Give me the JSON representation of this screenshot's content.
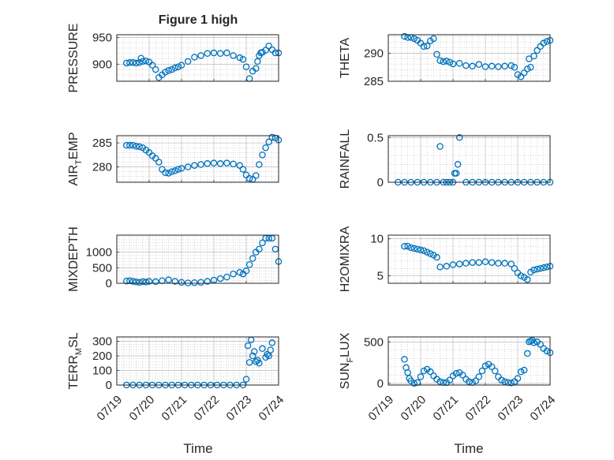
{
  "title": "Figure 1 high",
  "colors": {
    "marker": "#0072BD",
    "axis": "#262626",
    "grid": "#b0b0b0",
    "background": "#ffffff"
  },
  "x_tick_labels": [
    "07/19",
    "07/20",
    "07/21",
    "07/22",
    "07/23",
    "07/24"
  ],
  "x_axis_label": "Time",
  "chart_data": [
    {
      "type": "scatter",
      "title": "Figure 1 high",
      "ylabel": "PRESSURE",
      "xlabel": "",
      "xlim": [
        0,
        5
      ],
      "ylim": [
        868,
        955
      ],
      "yticks": [
        900,
        950
      ],
      "grid": "on",
      "x": [
        0.3,
        0.4,
        0.5,
        0.6,
        0.7,
        0.75,
        0.8,
        0.9,
        1.0,
        1.1,
        1.2,
        1.3,
        1.4,
        1.5,
        1.6,
        1.7,
        1.8,
        1.9,
        2.0,
        2.2,
        2.4,
        2.6,
        2.8,
        3.0,
        3.2,
        3.4,
        3.6,
        3.8,
        3.9,
        4.0,
        4.1,
        4.2,
        4.3,
        4.35,
        4.4,
        4.45,
        4.5,
        4.6,
        4.7,
        4.8,
        4.9,
        5.0
      ],
      "y": [
        902,
        903,
        903,
        902,
        903,
        911,
        905,
        906,
        904,
        898,
        890,
        875,
        880,
        885,
        888,
        890,
        893,
        895,
        898,
        905,
        913,
        916,
        920,
        921,
        920,
        921,
        916,
        912,
        909,
        895,
        873,
        887,
        892,
        905,
        916,
        921,
        922,
        926,
        934,
        927,
        921,
        921
      ]
    },
    {
      "type": "scatter",
      "ylabel": "THETA",
      "xlim": [
        0,
        5
      ],
      "ylim": [
        285,
        293.3
      ],
      "yticks": [
        285,
        290
      ],
      "grid": "on",
      "x": [
        0.5,
        0.6,
        0.7,
        0.8,
        0.9,
        1.0,
        1.1,
        1.2,
        1.3,
        1.4,
        1.5,
        1.6,
        1.7,
        1.8,
        1.9,
        2.0,
        2.2,
        2.4,
        2.6,
        2.8,
        3.0,
        3.2,
        3.4,
        3.6,
        3.8,
        3.9,
        4.0,
        4.1,
        4.2,
        4.3,
        4.35,
        4.4,
        4.5,
        4.6,
        4.7,
        4.8,
        4.9,
        5.0
      ],
      "y": [
        293,
        292.8,
        292.8,
        292.6,
        292.3,
        291.8,
        291.2,
        291.3,
        292.2,
        292.6,
        289.8,
        288.7,
        288.5,
        288.6,
        288.4,
        288.1,
        288.2,
        287.8,
        287.7,
        288,
        287.6,
        287.7,
        287.6,
        287.7,
        287.8,
        287.5,
        286.2,
        285.8,
        286.5,
        287.2,
        289,
        287.5,
        289.5,
        290.5,
        291.2,
        291.8,
        292.1,
        292.3
      ]
    },
    {
      "type": "scatter",
      "ylabel": "AIR_TEMP",
      "xlim": [
        0,
        5
      ],
      "ylim": [
        276.8,
        286.5
      ],
      "yticks": [
        280,
        285
      ],
      "grid": "on",
      "x": [
        0.3,
        0.4,
        0.5,
        0.6,
        0.7,
        0.8,
        0.9,
        1.0,
        1.1,
        1.2,
        1.3,
        1.4,
        1.5,
        1.6,
        1.7,
        1.8,
        1.9,
        2.0,
        2.2,
        2.4,
        2.6,
        2.8,
        3.0,
        3.2,
        3.4,
        3.6,
        3.8,
        3.9,
        4.0,
        4.1,
        4.2,
        4.3,
        4.4,
        4.5,
        4.6,
        4.7,
        4.8,
        4.9,
        5.0
      ],
      "y": [
        284.5,
        284.5,
        284.5,
        284.3,
        284.2,
        284,
        283.5,
        283,
        282.3,
        281.8,
        281,
        279.5,
        278.8,
        278.7,
        279,
        279.2,
        279.5,
        279.7,
        280,
        280.3,
        280.5,
        280.7,
        280.8,
        280.7,
        280.8,
        280.6,
        280.3,
        279.5,
        278.3,
        277.6,
        277.4,
        278.2,
        280.5,
        282.5,
        284,
        285.2,
        286.2,
        286,
        285.6
      ]
    },
    {
      "type": "scatter",
      "ylabel": "RAINFALL",
      "xlim": [
        0,
        5
      ],
      "ylim": [
        0,
        0.52
      ],
      "yticks": [
        0,
        0.5
      ],
      "grid": "on",
      "x": [
        0.3,
        0.5,
        0.7,
        0.9,
        1.1,
        1.3,
        1.5,
        1.6,
        1.7,
        1.8,
        1.9,
        2.0,
        2.05,
        2.1,
        2.15,
        2.2,
        2.4,
        2.6,
        2.8,
        3.0,
        3.2,
        3.4,
        3.6,
        3.8,
        4.0,
        4.2,
        4.4,
        4.6,
        4.8,
        5.0
      ],
      "y": [
        0,
        0,
        0,
        0,
        0,
        0,
        0,
        0.4,
        0,
        0,
        0,
        0,
        0.1,
        0.1,
        0.2,
        0.5,
        0,
        0,
        0,
        0,
        0,
        0,
        0,
        0,
        0,
        0,
        0,
        0,
        0,
        0
      ]
    },
    {
      "type": "scatter",
      "ylabel": "MIXDEPTH",
      "xlim": [
        0,
        5
      ],
      "ylim": [
        0,
        1550
      ],
      "yticks": [
        0,
        500,
        1000
      ],
      "grid": "on",
      "x": [
        0.3,
        0.4,
        0.5,
        0.6,
        0.7,
        0.8,
        0.9,
        1.0,
        1.2,
        1.4,
        1.6,
        1.8,
        2.0,
        2.2,
        2.4,
        2.6,
        2.8,
        3.0,
        3.2,
        3.4,
        3.6,
        3.8,
        3.9,
        4.0,
        4.1,
        4.2,
        4.3,
        4.4,
        4.5,
        4.6,
        4.7,
        4.8,
        4.9,
        5.0
      ],
      "y": [
        70,
        80,
        60,
        40,
        30,
        50,
        40,
        60,
        50,
        80,
        110,
        60,
        30,
        10,
        20,
        30,
        60,
        100,
        150,
        200,
        300,
        350,
        300,
        400,
        600,
        800,
        1000,
        1100,
        1300,
        1450,
        1450,
        1450,
        1100,
        700
      ]
    },
    {
      "type": "scatter",
      "ylabel": "H2OMIXRA",
      "xlim": [
        0,
        5
      ],
      "ylim": [
        4,
        10.5
      ],
      "yticks": [
        5,
        10
      ],
      "grid": "on",
      "x": [
        0.5,
        0.6,
        0.7,
        0.8,
        0.9,
        1.0,
        1.1,
        1.2,
        1.3,
        1.4,
        1.5,
        1.6,
        1.8,
        2.0,
        2.2,
        2.4,
        2.6,
        2.8,
        3.0,
        3.2,
        3.4,
        3.6,
        3.8,
        3.9,
        4.0,
        4.1,
        4.2,
        4.3,
        4.4,
        4.5,
        4.6,
        4.7,
        4.8,
        4.9,
        5.0
      ],
      "y": [
        9,
        9,
        8.8,
        8.7,
        8.6,
        8.5,
        8.4,
        8.2,
        8,
        7.8,
        7.5,
        6.2,
        6.3,
        6.5,
        6.6,
        6.7,
        6.8,
        6.8,
        6.9,
        6.8,
        6.7,
        6.7,
        6.6,
        6,
        5.4,
        5,
        4.8,
        4.5,
        5.5,
        5.8,
        5.9,
        6,
        6.1,
        6.2,
        6.3
      ]
    },
    {
      "type": "scatter",
      "ylabel": "TERR_MSL",
      "xlim": [
        0,
        5
      ],
      "ylim": [
        0,
        330
      ],
      "yticks": [
        0,
        100,
        200,
        300
      ],
      "grid": "on",
      "x": [
        0.3,
        0.5,
        0.7,
        0.9,
        1.1,
        1.3,
        1.5,
        1.7,
        1.9,
        2.1,
        2.3,
        2.5,
        2.7,
        2.9,
        3.1,
        3.3,
        3.5,
        3.7,
        3.9,
        4.0,
        4.05,
        4.1,
        4.15,
        4.2,
        4.25,
        4.3,
        4.35,
        4.4,
        4.5,
        4.6,
        4.65,
        4.7,
        4.75,
        4.8
      ],
      "y": [
        0,
        0,
        0,
        0,
        0,
        0,
        0,
        0,
        0,
        0,
        0,
        0,
        0,
        0,
        0,
        0,
        0,
        0,
        0,
        40,
        270,
        155,
        310,
        200,
        230,
        160,
        170,
        150,
        250,
        190,
        210,
        200,
        240,
        290
      ]
    },
    {
      "type": "scatter",
      "ylabel": "SUN_FLUX",
      "xlim": [
        0,
        5
      ],
      "ylim": [
        -20,
        560
      ],
      "yticks": [
        0,
        500
      ],
      "grid": "on",
      "x": [
        0.5,
        0.55,
        0.6,
        0.65,
        0.7,
        0.8,
        0.9,
        1.0,
        1.1,
        1.2,
        1.3,
        1.4,
        1.5,
        1.6,
        1.7,
        1.8,
        1.9,
        2.0,
        2.1,
        2.2,
        2.3,
        2.4,
        2.5,
        2.6,
        2.7,
        2.8,
        2.9,
        3.0,
        3.1,
        3.2,
        3.3,
        3.4,
        3.5,
        3.6,
        3.7,
        3.8,
        3.9,
        4.0,
        4.1,
        4.2,
        4.3,
        4.35,
        4.4,
        4.45,
        4.5,
        4.6,
        4.7,
        4.8,
        4.9,
        5.0
      ],
      "y": [
        290,
        190,
        130,
        60,
        30,
        0,
        10,
        80,
        150,
        170,
        140,
        90,
        50,
        20,
        10,
        10,
        40,
        90,
        120,
        130,
        100,
        50,
        20,
        10,
        30,
        80,
        150,
        210,
        230,
        200,
        150,
        80,
        40,
        20,
        10,
        5,
        20,
        60,
        140,
        160,
        360,
        500,
        510,
        520,
        490,
        500,
        470,
        420,
        390,
        370
      ]
    }
  ]
}
